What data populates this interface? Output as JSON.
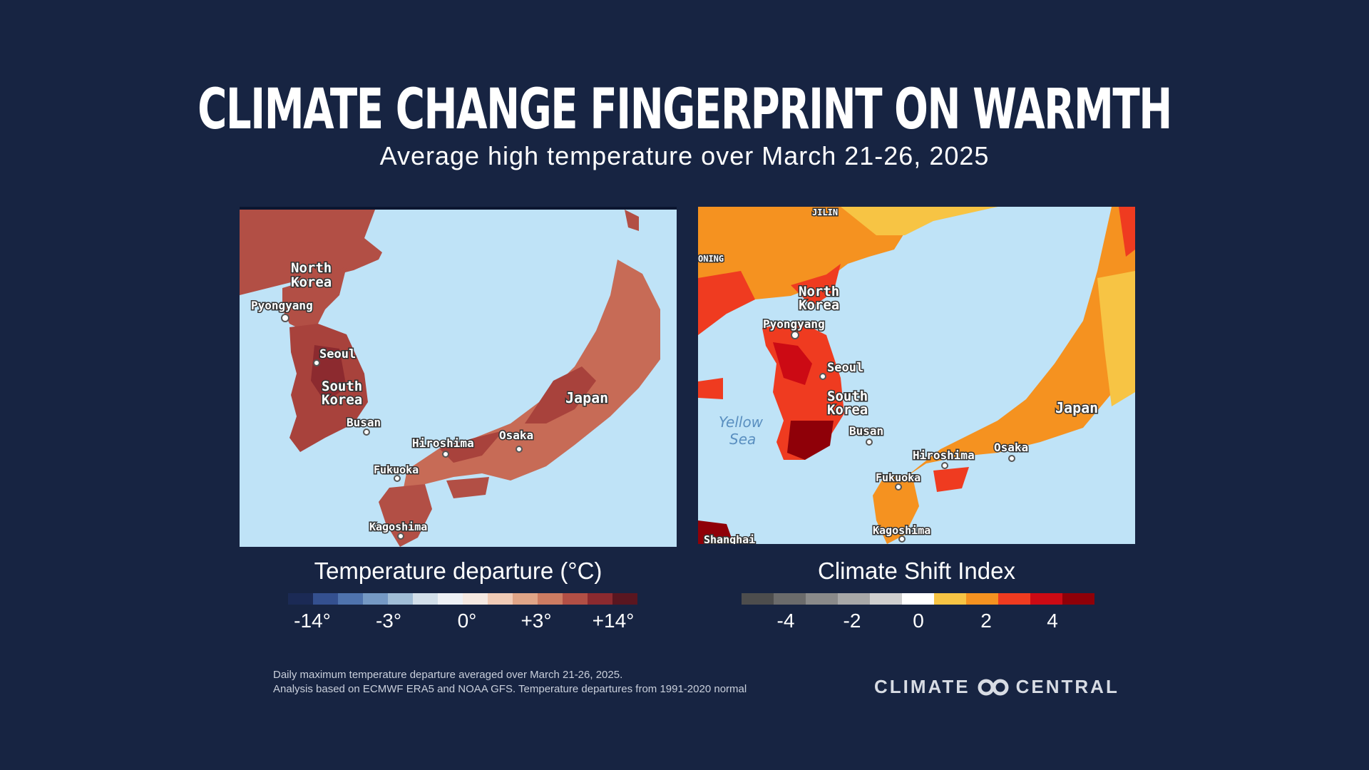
{
  "header": {
    "title": "CLIMATE CHANGE FINGERPRINT ON WARMTH",
    "subtitle": "Average high temperature over March 21-26, 2025"
  },
  "map_left": {
    "labels": {
      "north_korea_1": "North",
      "north_korea_2": "Korea",
      "pyongyang": "Pyongyang",
      "seoul": "Seoul",
      "south_korea_1": "South",
      "south_korea_2": "Korea",
      "busan": "Busan",
      "hiroshima": "Hiroshima",
      "osaka": "Osaka",
      "fukuoka": "Fukuoka",
      "kagoshima": "Kagoshima",
      "japan": "Japan"
    }
  },
  "map_right": {
    "labels": {
      "jilin": "JILIN",
      "liaoning": "ONING",
      "north_korea_1": "North",
      "north_korea_2": "Korea",
      "pyongyang": "Pyongyang",
      "seoul": "Seoul",
      "south_korea_1": "South",
      "south_korea_2": "Korea",
      "busan": "Busan",
      "hiroshima": "Hiroshima",
      "osaka": "Osaka",
      "fukuoka": "Fukuoka",
      "kagoshima": "Kagoshima",
      "japan": "Japan",
      "shanghai": "Shanghai",
      "yellow_sea_1": "Yellow",
      "yellow_sea_2": "Sea"
    }
  },
  "legend_left": {
    "title": "Temperature departure (°C)",
    "colors": [
      "#1b2a55",
      "#34508f",
      "#4f73ad",
      "#7599c4",
      "#a0bdd6",
      "#d2dfea",
      "#eef1f6",
      "#f5e9e2",
      "#f0cbb6",
      "#e0a587",
      "#cd7c62",
      "#b24f45",
      "#8c2a2f",
      "#5a1620"
    ],
    "ticks": [
      "-14°",
      "-3°",
      "0°",
      "+3°",
      "+14°"
    ]
  },
  "legend_right": {
    "title": "Climate Shift Index",
    "colors": [
      "#4d4d4d",
      "#6b6b6b",
      "#8a8a8a",
      "#a8a8a8",
      "#cfcfcf",
      "#ffffff",
      "#f7c444",
      "#f59220",
      "#ef3b20",
      "#cc0a14",
      "#8f0008"
    ],
    "ticks": [
      "-4",
      "-2",
      "0",
      "2",
      "4"
    ]
  },
  "footer": {
    "line1": "Daily maximum temperature departure averaged over March 21-26, 2025.",
    "line2": "Analysis based on ECMWF ERA5 and NOAA GFS. Temperature departures from 1991-2020 normal"
  },
  "brand": {
    "left": "CLIMATE",
    "right": "CENTRAL",
    "icon": "climate-central-logo-icon"
  },
  "colors": {
    "background": "#172442",
    "sea": "#bfe3f7"
  }
}
